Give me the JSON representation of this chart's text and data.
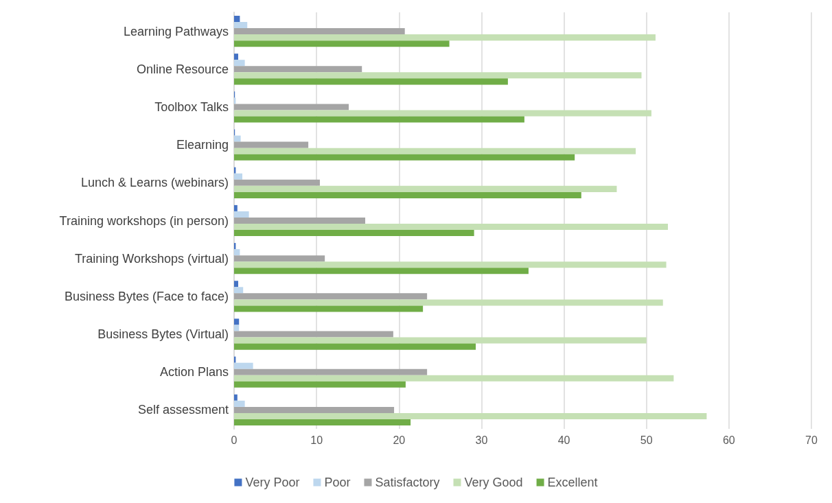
{
  "chart_data": {
    "type": "bar",
    "orientation": "horizontal",
    "categories": [
      "Learning Pathways",
      "Online Resource",
      "Toolbox Talks",
      "Elearning",
      "Lunch & Learns (webinars)",
      "Training workshops (in person)",
      "Training Workshops (virtual)",
      "Business Bytes (Face to face)",
      "Business Bytes (Virtual)",
      "Action Plans",
      "Self assessment"
    ],
    "series": [
      {
        "name": "Very Poor",
        "color": "#4472c4",
        "values": [
          0.7,
          0.5,
          0.1,
          0.1,
          0.2,
          0.4,
          0.2,
          0.5,
          0.6,
          0.2,
          0.4
        ]
      },
      {
        "name": "Poor",
        "color": "#bdd7ee",
        "values": [
          1.6,
          1.3,
          0.2,
          0.8,
          1.0,
          1.8,
          0.7,
          1.1,
          0.6,
          2.3,
          1.3
        ]
      },
      {
        "name": "Satisfactory",
        "color": "#a5a5a5",
        "values": [
          20.7,
          15.5,
          13.9,
          9.0,
          10.4,
          15.9,
          11.0,
          23.4,
          19.3,
          23.4,
          19.4
        ]
      },
      {
        "name": "Very Good",
        "color": "#c5e0b4",
        "values": [
          51.1,
          49.4,
          50.6,
          48.7,
          46.4,
          52.6,
          52.4,
          52.0,
          50.0,
          53.3,
          57.3
        ]
      },
      {
        "name": "Excellent",
        "color": "#70ad47",
        "values": [
          26.1,
          33.2,
          35.2,
          41.3,
          42.1,
          29.1,
          35.7,
          22.9,
          29.3,
          20.8,
          21.4
        ]
      }
    ],
    "xlim": [
      0,
      70
    ],
    "xticks": [
      0,
      10,
      20,
      30,
      40,
      50,
      60,
      70
    ],
    "grid": "x",
    "legend": "bottom"
  }
}
